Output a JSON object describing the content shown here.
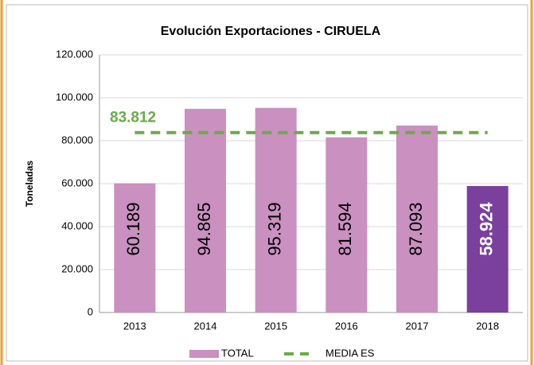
{
  "chart_data": {
    "type": "bar",
    "title": "Evolución  Exportaciones  - CIRUELA",
    "y_label": "Toneladas",
    "categories": [
      "2013",
      "2014",
      "2015",
      "2016",
      "2017",
      "2018"
    ],
    "series": [
      {
        "name": "TOTAL",
        "type": "bar",
        "color": "#c990c0",
        "point_colors": [
          "#c990c0",
          "#c990c0",
          "#c990c0",
          "#c990c0",
          "#c990c0",
          "#7b3f9e"
        ],
        "values": [
          60189,
          94865,
          95319,
          81594,
          87093,
          58924
        ],
        "value_labels": [
          "60.189",
          "94.865",
          "95.319",
          "81.594",
          "87.093",
          "58.924"
        ]
      },
      {
        "name": "MEDIA ES",
        "type": "line",
        "color": "#6aaa4a",
        "values": [
          83812,
          83812,
          83812,
          83812,
          83812,
          83812
        ],
        "value_labels": [
          "83.812",
          null,
          null,
          null,
          null,
          null
        ]
      }
    ],
    "ylim": [
      0,
      120000
    ],
    "yticks": [
      0,
      {
        "value": 20000,
        "label": "20.000"
      },
      {
        "value": 40000,
        "label": "40.000"
      },
      {
        "value": 60000,
        "label": "60.000"
      },
      {
        "value": 80000,
        "label": "80.000"
      },
      {
        "value": 100000,
        "label": "100.000"
      },
      {
        "value": 120000,
        "label": "120.000"
      }
    ],
    "grid": true,
    "legend": "bottom"
  }
}
